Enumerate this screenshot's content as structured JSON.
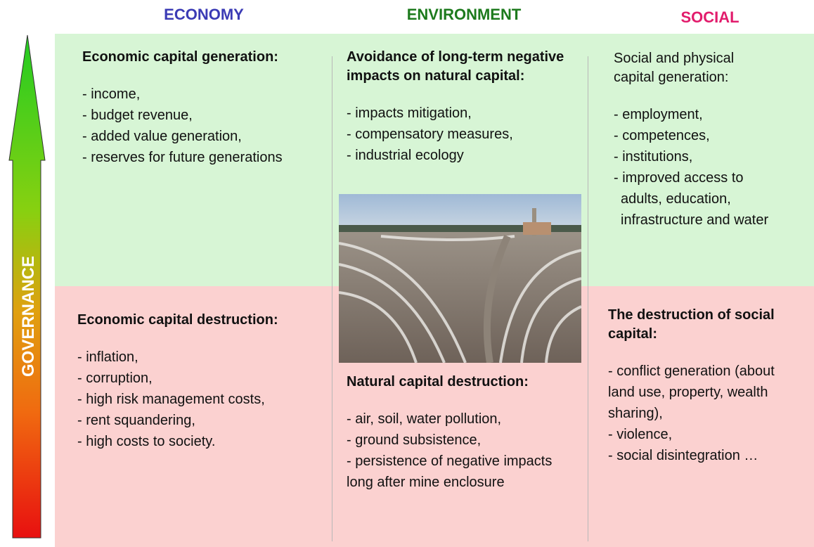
{
  "columns": [
    "ECONOMY",
    "ENVIRONMENT",
    "SOCIAL"
  ],
  "axis_label": "GOVERNANCE",
  "cells": {
    "economy_positive": {
      "heading": "Economic capital generation:",
      "items": [
        "- income,",
        "- budget revenue,",
        "- added value  generation,",
        "- reserves for future generations"
      ]
    },
    "environment_positive": {
      "heading": "Avoidance of long-term negative impacts on natural capital:",
      "items": [
        "- impacts mitigation,",
        "- compensatory measures,",
        "- industrial ecology"
      ]
    },
    "social_positive": {
      "heading": "Social and physical capital generation:",
      "items": [
        "- employment,",
        "- competences,",
        "- institutions,",
        "- improved access to adults, education, infrastructure and water"
      ]
    },
    "economy_negative": {
      "heading": "Economic capital destruction:",
      "items": [
        "- inflation,",
        "- corruption,",
        "- high risk management costs,",
        "- rent squandering,",
        "- high costs to society."
      ]
    },
    "environment_negative": {
      "heading": "Natural capital destruction:",
      "items": [
        "- air, soil, water pollution,",
        "- ground subsistence,",
        "- persistence of negative impacts long after mine enclosure"
      ]
    },
    "social_negative": {
      "heading": "The destruction of social capital:",
      "items": [
        "- conflict generation (about land use, property, wealth sharing),",
        "- violence,",
        "- social disintegration …"
      ]
    }
  }
}
